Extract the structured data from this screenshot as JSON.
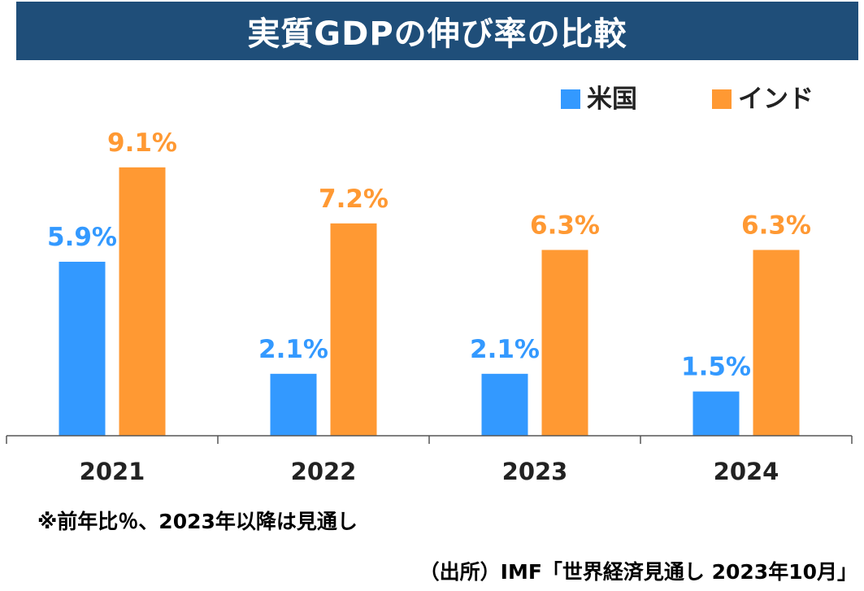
{
  "header": {
    "title": "実質GDPの伸び率の比較"
  },
  "colors": {
    "title_bg": "#1f4e79",
    "us": "#3399ff",
    "india": "#ff9933",
    "axis": "#555555"
  },
  "chart_data": {
    "type": "bar",
    "title": "実質GDPの伸び率の比較",
    "categories": [
      "2021",
      "2022",
      "2023",
      "2024"
    ],
    "series": [
      {
        "name": "米国",
        "values": [
          5.9,
          2.1,
          2.1,
          1.5
        ],
        "labels": [
          "5.9%",
          "2.1%",
          "2.1%",
          "1.5%"
        ]
      },
      {
        "name": "インド",
        "values": [
          9.1,
          7.2,
          6.3,
          6.3
        ],
        "labels": [
          "9.1%",
          "7.2%",
          "6.3%",
          "6.3%"
        ]
      }
    ],
    "ylim": [
      0,
      14.5
    ],
    "legend": "top-right",
    "grid": false
  },
  "footer": {
    "note": "※前年比％、2023年以降は見通し",
    "source": "（出所）IMF「世界経済見通し 2023年10月」"
  }
}
